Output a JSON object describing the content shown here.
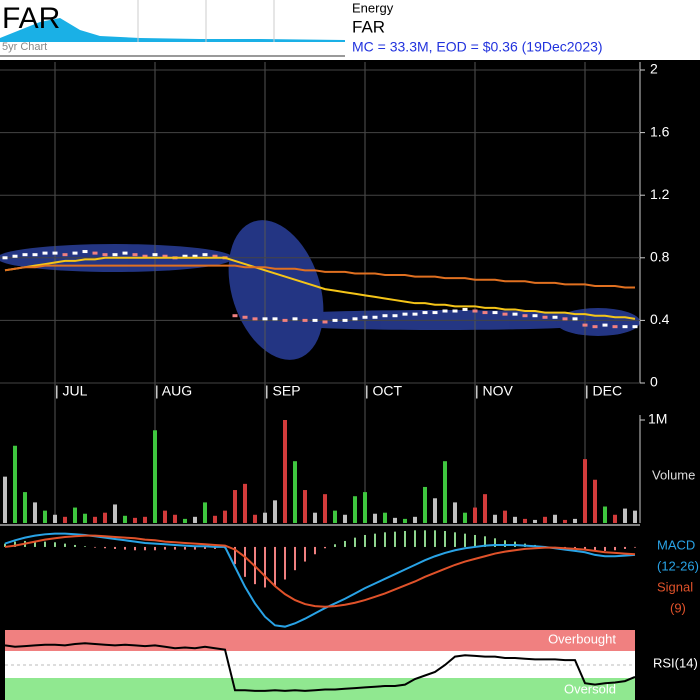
{
  "header": {
    "symbol": "FAR",
    "thumb_label": "5yr Chart",
    "sector": "Energy",
    "name": "FAR",
    "info": "MC = 33.3M, EOD = $0.36 (19Dec2023)"
  },
  "chart_data": [
    {
      "type": "line",
      "categories": [
        null,
        null,
        null,
        null,
        null,
        "| JUL",
        null,
        null,
        null,
        null,
        null,
        null,
        null,
        null,
        null,
        "| AUG",
        null,
        null,
        null,
        null,
        null,
        null,
        null,
        null,
        null,
        null,
        "| SEP",
        null,
        null,
        null,
        null,
        null,
        null,
        null,
        null,
        null,
        "| OCT",
        null,
        null,
        null,
        null,
        null,
        null,
        null,
        null,
        null,
        null,
        "| NOV",
        null,
        null,
        null,
        null,
        null,
        null,
        null,
        null,
        null,
        null,
        "| DEC",
        null,
        null,
        null,
        null,
        null
      ],
      "ylim": [
        0,
        2
      ],
      "yticks": [
        0,
        0.4,
        0.8,
        1.2,
        1.6,
        2
      ],
      "grid": true,
      "series": [
        {
          "color": "#ffffff",
          "values": [
            0.8,
            0.81,
            0.82,
            0.82,
            0.83,
            0.83,
            0.82,
            0.83,
            0.84,
            0.83,
            0.82,
            0.82,
            0.83,
            0.82,
            0.81,
            0.82,
            0.81,
            0.8,
            0.81,
            0.81,
            0.82,
            0.81,
            0.8,
            0.43,
            0.42,
            0.41,
            0.41,
            0.41,
            0.4,
            0.41,
            0.4,
            0.4,
            0.39,
            0.4,
            0.4,
            0.41,
            0.42,
            0.42,
            0.43,
            0.43,
            0.44,
            0.44,
            0.45,
            0.45,
            0.46,
            0.46,
            0.47,
            0.46,
            0.45,
            0.45,
            0.44,
            0.44,
            0.43,
            0.43,
            0.42,
            0.42,
            0.41,
            0.41,
            0.37,
            0.36,
            0.37,
            0.36,
            0.36,
            0.36
          ]
        },
        {
          "color": "#f5c518",
          "values": [
            0.72,
            0.73,
            0.74,
            0.75,
            0.76,
            0.77,
            0.78,
            0.78,
            0.79,
            0.79,
            0.8,
            0.8,
            0.8,
            0.8,
            0.8,
            0.8,
            0.8,
            0.8,
            0.8,
            0.8,
            0.8,
            0.8,
            0.8,
            0.78,
            0.76,
            0.74,
            0.72,
            0.7,
            0.68,
            0.66,
            0.64,
            0.62,
            0.6,
            0.59,
            0.58,
            0.57,
            0.56,
            0.55,
            0.54,
            0.53,
            0.52,
            0.51,
            0.51,
            0.5,
            0.5,
            0.49,
            0.49,
            0.49,
            0.48,
            0.48,
            0.47,
            0.47,
            0.46,
            0.46,
            0.45,
            0.45,
            0.45,
            0.44,
            0.44,
            0.43,
            0.43,
            0.42,
            0.42,
            0.41
          ]
        },
        {
          "color": "#e07020",
          "values": [
            0.72,
            0.73,
            0.74,
            0.74,
            0.75,
            0.75,
            0.75,
            0.75,
            0.75,
            0.75,
            0.75,
            0.75,
            0.75,
            0.75,
            0.75,
            0.75,
            0.75,
            0.75,
            0.75,
            0.75,
            0.75,
            0.75,
            0.75,
            0.75,
            0.74,
            0.74,
            0.74,
            0.73,
            0.73,
            0.73,
            0.72,
            0.72,
            0.71,
            0.71,
            0.71,
            0.7,
            0.7,
            0.7,
            0.69,
            0.69,
            0.69,
            0.68,
            0.68,
            0.68,
            0.67,
            0.67,
            0.67,
            0.66,
            0.66,
            0.66,
            0.65,
            0.65,
            0.65,
            0.64,
            0.64,
            0.64,
            0.63,
            0.63,
            0.63,
            0.62,
            0.62,
            0.62,
            0.61,
            0.61
          ]
        }
      ]
    },
    {
      "type": "bar",
      "label": "Volume",
      "ylim": [
        0,
        1000000
      ],
      "yticks": [
        {
          "value": 1000000,
          "label": "1M"
        }
      ],
      "up_color": "#3fc63f",
      "down_color": "#d23b3b",
      "flat_color": "#c0c0c0",
      "values": [
        450000,
        750000,
        300000,
        200000,
        120000,
        80000,
        60000,
        150000,
        90000,
        60000,
        100000,
        180000,
        70000,
        50000,
        60000,
        900000,
        120000,
        80000,
        40000,
        60000,
        200000,
        70000,
        120000,
        320000,
        380000,
        80000,
        100000,
        220000,
        1000000,
        600000,
        320000,
        100000,
        280000,
        120000,
        80000,
        260000,
        300000,
        90000,
        100000,
        50000,
        40000,
        60000,
        350000,
        240000,
        600000,
        200000,
        100000,
        150000,
        280000,
        80000,
        120000,
        60000,
        40000,
        30000,
        60000,
        80000,
        30000,
        40000,
        620000,
        420000,
        160000,
        80000,
        140000,
        120000
      ]
    },
    {
      "type": "line",
      "ylim": [
        -0.125,
        0.03
      ],
      "series": [
        {
          "name": "MACD",
          "params": "(12-26)",
          "color": "#29a3e6",
          "values": [
            0.005,
            0.01,
            0.014,
            0.017,
            0.019,
            0.02,
            0.02,
            0.019,
            0.018,
            0.016,
            0.014,
            0.012,
            0.01,
            0.008,
            0.006,
            0.005,
            0.004,
            0.003,
            0.002,
            0.001,
            0.001,
            0.0,
            0.0,
            -0.03,
            -0.06,
            -0.085,
            -0.105,
            -0.118,
            -0.12,
            -0.115,
            -0.108,
            -0.1,
            -0.092,
            -0.085,
            -0.078,
            -0.07,
            -0.062,
            -0.055,
            -0.048,
            -0.041,
            -0.034,
            -0.027,
            -0.02,
            -0.014,
            -0.009,
            -0.005,
            -0.002,
            0.0,
            0.002,
            0.003,
            0.003,
            0.003,
            0.002,
            0.001,
            0.0,
            -0.002,
            -0.004,
            -0.006,
            -0.008,
            -0.012,
            -0.014,
            -0.014,
            -0.013,
            -0.012
          ]
        },
        {
          "name": "Signal",
          "params": "(9)",
          "color": "#e0522a",
          "values": [
            0.0,
            0.002,
            0.005,
            0.008,
            0.011,
            0.013,
            0.015,
            0.016,
            0.017,
            0.017,
            0.016,
            0.015,
            0.014,
            0.013,
            0.011,
            0.01,
            0.008,
            0.007,
            0.006,
            0.005,
            0.004,
            0.003,
            0.002,
            -0.004,
            -0.015,
            -0.029,
            -0.044,
            -0.059,
            -0.071,
            -0.08,
            -0.086,
            -0.089,
            -0.09,
            -0.089,
            -0.087,
            -0.084,
            -0.08,
            -0.075,
            -0.07,
            -0.064,
            -0.058,
            -0.052,
            -0.045,
            -0.039,
            -0.033,
            -0.027,
            -0.022,
            -0.018,
            -0.014,
            -0.01,
            -0.007,
            -0.005,
            -0.003,
            -0.002,
            -0.001,
            -0.001,
            -0.002,
            -0.003,
            -0.004,
            -0.006,
            -0.008,
            -0.009,
            -0.01,
            -0.011
          ]
        }
      ],
      "histogram": {
        "up_color": "#8fd68f",
        "down_color": "#f08080",
        "values": [
          0.005,
          0.008,
          0.009,
          0.009,
          0.008,
          0.007,
          0.005,
          0.003,
          0.001,
          -0.001,
          -0.002,
          -0.003,
          -0.004,
          -0.005,
          -0.005,
          -0.005,
          -0.004,
          -0.004,
          -0.004,
          -0.004,
          -0.003,
          -0.003,
          -0.002,
          -0.026,
          -0.045,
          -0.056,
          -0.061,
          -0.059,
          -0.049,
          -0.035,
          -0.022,
          -0.011,
          -0.002,
          0.004,
          0.009,
          0.014,
          0.018,
          0.02,
          0.022,
          0.023,
          0.024,
          0.025,
          0.025,
          0.025,
          0.024,
          0.022,
          0.02,
          0.018,
          0.016,
          0.013,
          0.01,
          0.008,
          0.005,
          0.003,
          0.001,
          -0.001,
          -0.002,
          -0.003,
          -0.004,
          -0.006,
          -0.006,
          -0.005,
          -0.003,
          -0.001
        ]
      }
    },
    {
      "type": "line",
      "ylim": [
        0,
        100
      ],
      "upper_label": "Overbought",
      "lower_label": "Oversold",
      "series": [
        {
          "name": "RSI(14)",
          "color": "#000000",
          "values": [
            78,
            76,
            77,
            78,
            79,
            79,
            78,
            80,
            81,
            80,
            79,
            78,
            79,
            78,
            77,
            78,
            76,
            74,
            75,
            74,
            76,
            74,
            72,
            14,
            14,
            13,
            13,
            14,
            13,
            14,
            13,
            14,
            15,
            15,
            16,
            17,
            18,
            19,
            20,
            20,
            22,
            30,
            35,
            40,
            50,
            62,
            64,
            63,
            62,
            62,
            60,
            60,
            59,
            58,
            58,
            58,
            57,
            57,
            24,
            22,
            24,
            25,
            27,
            33
          ]
        }
      ]
    }
  ]
}
